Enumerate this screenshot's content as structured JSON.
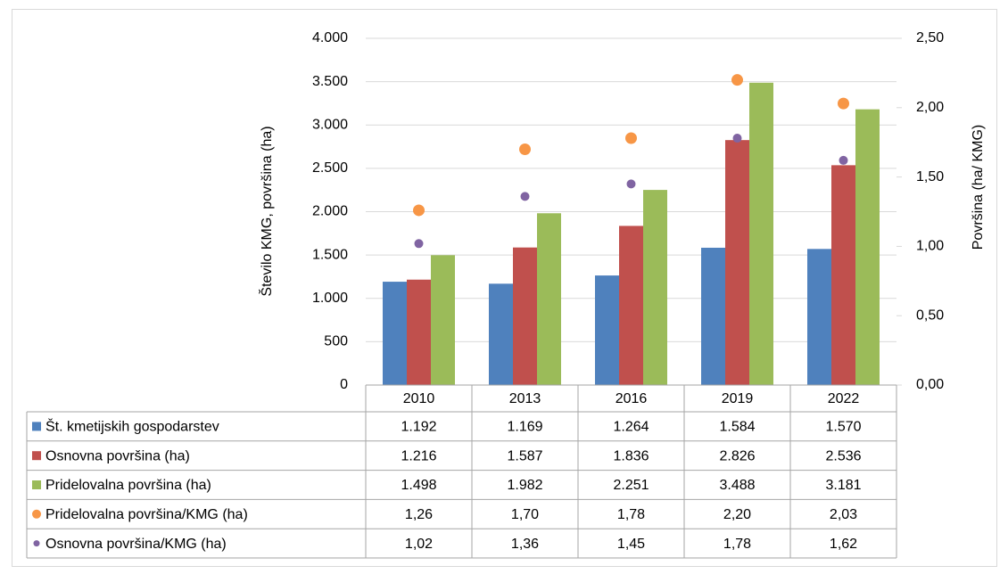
{
  "chart_data": {
    "type": "bar",
    "ylabel": "Število KMG, površina (ha)",
    "y2label": "Površina (ha/ KMG)",
    "categories": [
      "2010",
      "2013",
      "2016",
      "2019",
      "2022"
    ],
    "ylim": [
      0,
      4000
    ],
    "yticks": [
      0,
      500,
      {
        "value": 1000,
        "label": "1.000"
      },
      {
        "value": 1500,
        "label": "1.500"
      },
      {
        "value": 2000,
        "label": "2.000"
      },
      {
        "value": 2500,
        "label": "2.500"
      },
      {
        "value": 3000,
        "label": "3.000"
      },
      {
        "value": 3500,
        "label": "3.500"
      },
      {
        "value": 4000,
        "label": "4.000"
      }
    ],
    "y2lim": [
      0,
      2.5
    ],
    "y2ticks": [
      {
        "value": 0,
        "label": "0,00"
      },
      {
        "value": 0.5,
        "label": "0,50"
      },
      {
        "value": 1,
        "label": "1,00"
      },
      {
        "value": 1.5,
        "label": "1,50"
      },
      {
        "value": 2,
        "label": "2,00"
      },
      {
        "value": 2.5,
        "label": "2,50"
      }
    ],
    "grid": true,
    "series": [
      {
        "name": "Št. kmetijskih gospodarstev",
        "color": "#4f81bd",
        "values": [
          1192,
          1169,
          1264,
          1584,
          1570
        ],
        "value_labels": [
          "1.192",
          "1.169",
          "1.264",
          "1.584",
          "1.570"
        ]
      },
      {
        "name": "Osnovna površina (ha)",
        "color": "#c0504d",
        "values": [
          1216,
          1587,
          1836,
          2826,
          2536
        ],
        "value_labels": [
          "1.216",
          "1.587",
          "1.836",
          "2.826",
          "2.536"
        ]
      },
      {
        "name": "Pridelovalna površina (ha)",
        "color": "#9bbb59",
        "values": [
          1498,
          1982,
          2251,
          3488,
          3181
        ],
        "value_labels": [
          "1.498",
          "1.982",
          "2.251",
          "3.488",
          "3.181"
        ]
      },
      {
        "name": "Pridelovalna površina/KMG (ha)",
        "color": "#f79646",
        "type": "scatter",
        "axis": "y2",
        "values": [
          1.26,
          1.7,
          1.78,
          2.2,
          2.03
        ],
        "value_labels": [
          "1,26",
          "1,70",
          "1,78",
          "2,20",
          "2,03"
        ]
      },
      {
        "name": "Osnovna površina/KMG (ha)",
        "color": "#8064a2",
        "type": "scatter",
        "axis": "y2",
        "values": [
          1.02,
          1.36,
          1.45,
          1.78,
          1.62
        ],
        "value_labels": [
          "1,02",
          "1,36",
          "1,45",
          "1,78",
          "1,62"
        ]
      }
    ]
  }
}
